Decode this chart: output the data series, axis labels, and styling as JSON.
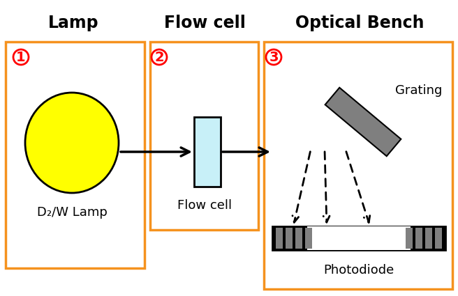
{
  "title_lamp": "Lamp",
  "title_flowcell": "Flow cell",
  "title_opticalbench": "Optical Bench",
  "label_lamp": "D₂/W Lamp",
  "label_flowcell": "Flow cell",
  "label_grating": "Grating",
  "label_photodiode": "Photodiode",
  "num_1": "1",
  "num_2": "2",
  "num_3": "3",
  "box_color": "#F5921E",
  "lamp_color": "#FFFF00",
  "flowcell_color": "#C8F0F8",
  "grating_color": "#7F7F7F",
  "grating_edge": "#000000",
  "photodiode_bar_color": "#808080",
  "background": "#FFFFFF",
  "title_fontsize": 17,
  "label_fontsize": 12,
  "circled_num_fontsize": 14,
  "fig_width": 6.56,
  "fig_height": 4.25
}
